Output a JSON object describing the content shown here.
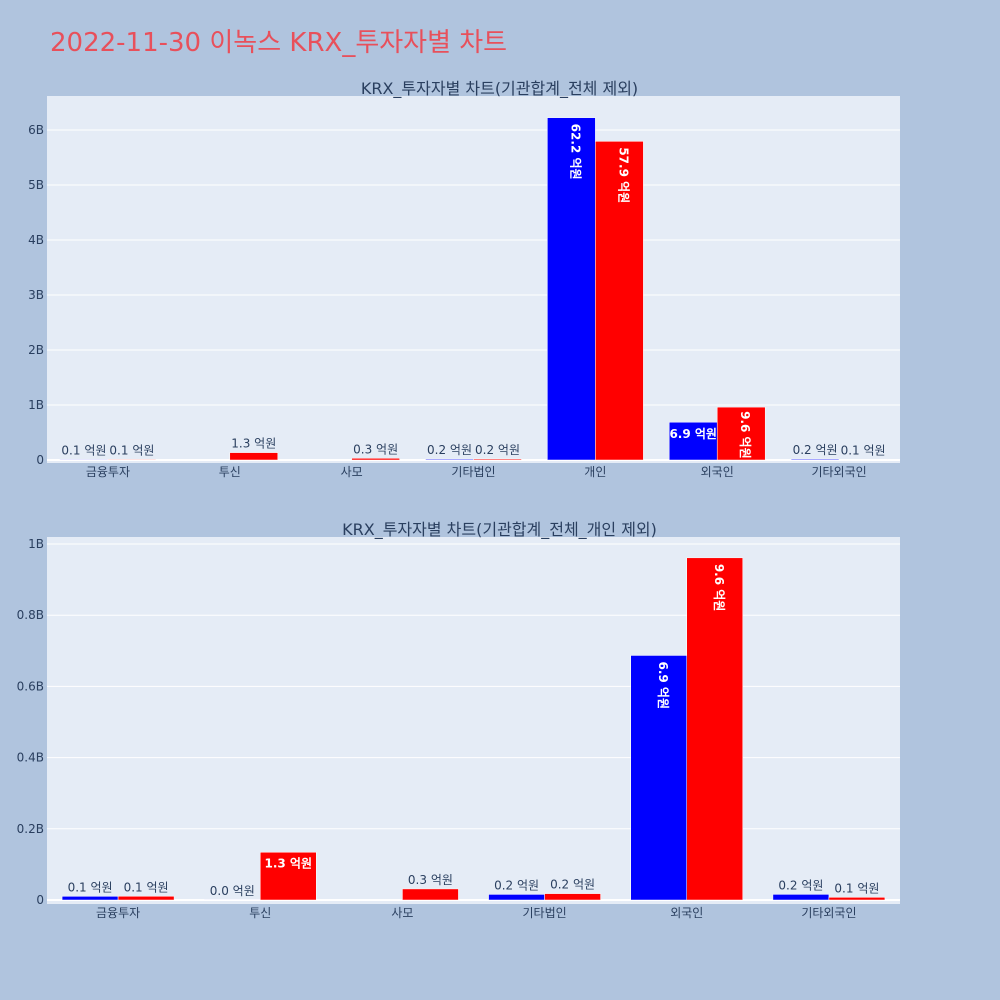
{
  "page": {
    "title": "2022-11-30 이녹스 KRX_투자자별 차트"
  },
  "colors": {
    "buy": "#0000ff",
    "sell": "#ff0000",
    "plot_bg": "#e5ecf6",
    "page_bg": "#b0c4de",
    "title": "#e8505b"
  },
  "chart_data": [
    {
      "type": "bar",
      "title": "KRX_투자자별 차트(기관합계_전체 제외)",
      "categories": [
        "금융투자",
        "투신",
        "사모",
        "기타법인",
        "개인",
        "외국인",
        "기타외국인"
      ],
      "series": [
        {
          "color": "#0000ff",
          "values": [
            0.0103,
            0.0003,
            0,
            0.0157,
            6.2237,
            0.6869,
            0.0158
          ],
          "labels": [
            "0.1 억원",
            "",
            "",
            "0.2 억원",
            "62.2 억원",
            "6.9 억원",
            "0.2 억원"
          ]
        },
        {
          "color": "#ff0000",
          "values": [
            0.0105,
            0.1341,
            0.0311,
            0.0179,
            5.7937,
            0.9612,
            0.0075
          ],
          "labels": [
            "0.1 억원",
            "1.3 억원",
            "0.3 억원",
            "0.2 억원",
            "57.9 억원",
            "9.6 억원",
            "0.1 억원"
          ]
        }
      ],
      "y_ticks": [
        "0",
        "1B",
        "2B",
        "3B",
        "4B",
        "5B",
        "6B"
      ],
      "ylim": [
        0,
        6.6
      ],
      "grid": true
    },
    {
      "type": "bar",
      "title": "KRX_투자자별 차트(기관합계_전체_개인 제외)",
      "categories": [
        "금융투자",
        "투신",
        "사모",
        "기타법인",
        "외국인",
        "기타외국인"
      ],
      "series": [
        {
          "color": "#0000ff",
          "values": [
            0.0103,
            0.0003,
            0,
            0.0157,
            0.6869,
            0.0158
          ],
          "labels": [
            "0.1 억원",
            "0.0 억원",
            "",
            "0.2 억원",
            "6.9 억원",
            "0.2 억원"
          ]
        },
        {
          "color": "#ff0000",
          "values": [
            0.0105,
            0.1341,
            0.0311,
            0.0179,
            0.9612,
            0.0075
          ],
          "labels": [
            "0.1 억원",
            "1.3 억원",
            "0.3 억원",
            "0.2 억원",
            "9.6 억원",
            "0.1 억원"
          ]
        }
      ],
      "y_ticks": [
        "0",
        "0.2B",
        "0.4B",
        "0.6B",
        "0.8B",
        "1B"
      ],
      "ylim": [
        0,
        1.01
      ],
      "grid": true
    }
  ]
}
